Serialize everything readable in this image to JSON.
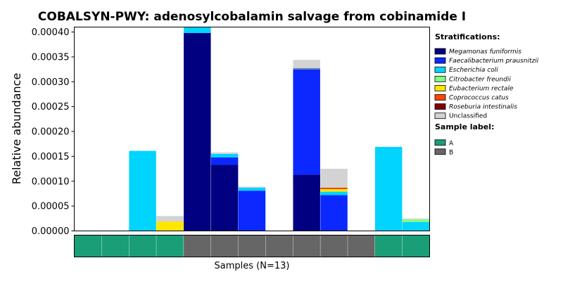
{
  "chart_data": {
    "type": "bar",
    "stacked": true,
    "title": "COBALSYN-PWY: adenosylcobalamin salvage from cobinamide I",
    "ylabel": "Relative abundance",
    "xlabel": "Samples (N=13)",
    "ylim": [
      0,
      0.00041
    ],
    "yticks": [
      "0.00000",
      "0.00005",
      "0.00010",
      "0.00015",
      "0.00020",
      "0.00025",
      "0.00030",
      "0.00035",
      "0.00040"
    ],
    "ytick_values": [
      0,
      5e-05,
      0.0001,
      0.00015,
      0.0002,
      0.00025,
      0.0003,
      0.00035,
      0.0004
    ],
    "n_samples": 13,
    "series": [
      {
        "name": "Megamonas funiformis",
        "color": "#000080",
        "italic": true,
        "values": [
          0,
          0,
          0,
          0,
          0.000398,
          0.000133,
          0,
          0,
          0.000113,
          0,
          0,
          0,
          0
        ]
      },
      {
        "name": "Faecalibacterium prausnitzii",
        "color": "#0a28ff",
        "italic": true,
        "values": [
          0,
          0,
          0,
          0,
          0,
          1.5e-05,
          8.1e-05,
          0,
          0.000212,
          7.2e-05,
          0,
          0,
          0
        ]
      },
      {
        "name": "Escherichia coli",
        "color": "#00d4ff",
        "italic": true,
        "values": [
          0,
          0,
          0.000161,
          0,
          1.3e-05,
          7e-06,
          6e-06,
          0,
          1e-06,
          7e-06,
          0,
          0.000169,
          1.8e-05
        ]
      },
      {
        "name": "Citrobacter freundii",
        "color": "#7fff7f",
        "italic": true,
        "values": [
          0,
          0,
          0,
          0,
          0,
          0,
          0,
          0,
          0,
          0,
          0,
          0,
          5e-06
        ]
      },
      {
        "name": "Eubacterium rectale",
        "color": "#ffe600",
        "italic": true,
        "values": [
          0,
          0,
          0,
          1.9e-05,
          0,
          0,
          0,
          0,
          0,
          5e-06,
          0,
          0,
          0
        ]
      },
      {
        "name": "Coprococcus catus",
        "color": "#ff4500",
        "italic": true,
        "values": [
          0,
          0,
          0,
          0,
          0,
          0,
          0,
          0,
          0,
          3e-06,
          0,
          0,
          0
        ]
      },
      {
        "name": "Roseburia intestinalis",
        "color": "#800000",
        "italic": true,
        "values": [
          0,
          0,
          0,
          0,
          0,
          0,
          0,
          0,
          1e-06,
          0,
          0,
          0,
          0
        ]
      },
      {
        "name": "Unclassified",
        "color": "#d3d3d3",
        "italic": false,
        "values": [
          0,
          0,
          0,
          1.1e-05,
          0,
          3e-06,
          2e-06,
          0,
          1.7e-05,
          3.8e-05,
          0,
          0,
          2e-06
        ]
      }
    ],
    "sample_labels": [
      "A",
      "A",
      "A",
      "A",
      "B",
      "B",
      "B",
      "B",
      "B",
      "B",
      "B",
      "A",
      "A"
    ],
    "legend": {
      "stratifications_heading": "Stratifications:",
      "sample_label_heading": "Sample label:",
      "sample_label_entries": [
        {
          "name": "A",
          "color": "#1a9e77"
        },
        {
          "name": "B",
          "color": "#666666"
        }
      ],
      "placement": "right"
    },
    "grid": false
  }
}
